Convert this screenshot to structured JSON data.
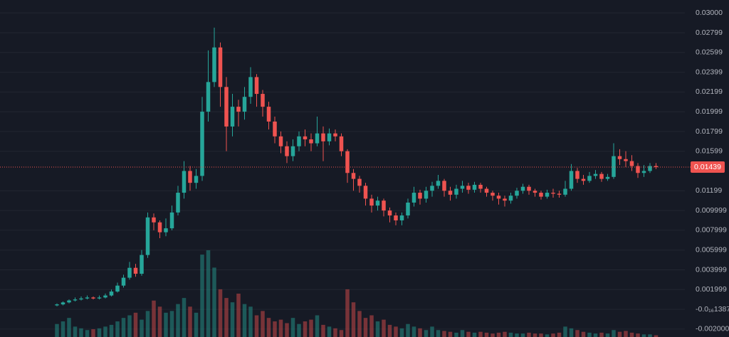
{
  "chart_data": {
    "type": "candlestick",
    "up_color": "#26a69a",
    "down_color": "#ef5350",
    "grid": true,
    "ylim": [
      -0.0028,
      0.0313
    ],
    "yticks": [
      {
        "value": 0.03,
        "label": "0.03000"
      },
      {
        "value": 0.02799,
        "label": "0.02799"
      },
      {
        "value": 0.02599,
        "label": "0.02599"
      },
      {
        "value": 0.02399,
        "label": "0.02399"
      },
      {
        "value": 0.02199,
        "label": "0.02199"
      },
      {
        "value": 0.01999,
        "label": "0.01999"
      },
      {
        "value": 0.01799,
        "label": "0.01799"
      },
      {
        "value": 0.01599,
        "label": "0.01599"
      },
      {
        "value": 0.01199,
        "label": "0.01199"
      },
      {
        "value": 0.009999,
        "label": "0.009999"
      },
      {
        "value": 0.007999,
        "label": "0.007999"
      },
      {
        "value": 0.005999,
        "label": "0.005999"
      },
      {
        "value": 0.003999,
        "label": "0.003999"
      },
      {
        "value": 0.001999,
        "label": "0.001999"
      },
      {
        "value": 0,
        "label": "-0.0₁₆1387"
      },
      {
        "value": -0.002,
        "label": "-0.002000"
      }
    ],
    "last_price": {
      "value": 0.01439,
      "label": "0.01439"
    },
    "open": [
      0.0004,
      0.0005,
      0.0007,
      0.0009,
      0.001,
      0.0011,
      0.0012,
      0.0011,
      0.0012,
      0.0014,
      0.0018,
      0.0024,
      0.0032,
      0.0042,
      0.0036,
      0.0055,
      0.0093,
      0.0088,
      0.0078,
      0.0082,
      0.0098,
      0.0118,
      0.014,
      0.0128,
      0.0135,
      0.02,
      0.023,
      0.0265,
      0.0225,
      0.0185,
      0.0205,
      0.02,
      0.0215,
      0.0235,
      0.0218,
      0.0205,
      0.019,
      0.0175,
      0.0165,
      0.0155,
      0.0165,
      0.0175,
      0.0172,
      0.0168,
      0.0178,
      0.017,
      0.0178,
      0.0175,
      0.016,
      0.0138,
      0.0132,
      0.0125,
      0.0112,
      0.0105,
      0.011,
      0.01,
      0.0095,
      0.009,
      0.0095,
      0.0108,
      0.0118,
      0.0112,
      0.012,
      0.0125,
      0.013,
      0.012,
      0.0116,
      0.0122,
      0.0125,
      0.0121,
      0.0126,
      0.0122,
      0.0118,
      0.0115,
      0.0112,
      0.011,
      0.0115,
      0.012,
      0.0124,
      0.012,
      0.0118,
      0.0114,
      0.0118,
      0.0117,
      0.0116,
      0.0122,
      0.014,
      0.0132,
      0.013,
      0.0135,
      0.0137,
      0.0132,
      0.0134,
      0.0155,
      0.0152,
      0.015,
      0.0145,
      0.0138,
      0.014,
      0.0145
    ],
    "high": [
      0.0006,
      0.0008,
      0.001,
      0.0012,
      0.0013,
      0.0014,
      0.0013,
      0.0014,
      0.0016,
      0.002,
      0.0027,
      0.0035,
      0.0048,
      0.0046,
      0.006,
      0.0098,
      0.0097,
      0.009,
      0.0092,
      0.0105,
      0.0125,
      0.015,
      0.0145,
      0.0142,
      0.0215,
      0.0262,
      0.0285,
      0.027,
      0.0235,
      0.0218,
      0.0212,
      0.0225,
      0.0245,
      0.0238,
      0.0222,
      0.021,
      0.0195,
      0.018,
      0.017,
      0.0172,
      0.018,
      0.0182,
      0.0178,
      0.0195,
      0.0185,
      0.0183,
      0.0182,
      0.0178,
      0.0162,
      0.0142,
      0.0135,
      0.0128,
      0.0116,
      0.0114,
      0.0112,
      0.0103,
      0.0098,
      0.0098,
      0.0112,
      0.0124,
      0.0121,
      0.0124,
      0.0129,
      0.0136,
      0.0132,
      0.0124,
      0.0126,
      0.013,
      0.0128,
      0.0129,
      0.0128,
      0.0124,
      0.012,
      0.0118,
      0.0115,
      0.0118,
      0.0123,
      0.0127,
      0.0126,
      0.0122,
      0.012,
      0.0121,
      0.0122,
      0.012,
      0.013,
      0.0147,
      0.0143,
      0.0136,
      0.0139,
      0.0141,
      0.0139,
      0.0137,
      0.0168,
      0.0162,
      0.016,
      0.0156,
      0.0148,
      0.0146,
      0.0148,
      0.0148
    ],
    "low": [
      0.0003,
      0.0004,
      0.0006,
      0.0008,
      0.0009,
      0.001,
      0.001,
      0.001,
      0.0011,
      0.0013,
      0.0017,
      0.0022,
      0.003,
      0.0033,
      0.0034,
      0.0052,
      0.008,
      0.0072,
      0.0074,
      0.008,
      0.0095,
      0.0112,
      0.012,
      0.0122,
      0.013,
      0.019,
      0.0225,
      0.0205,
      0.016,
      0.0175,
      0.0185,
      0.0192,
      0.0208,
      0.0205,
      0.0195,
      0.0182,
      0.0168,
      0.0158,
      0.0148,
      0.015,
      0.016,
      0.0165,
      0.016,
      0.0165,
      0.015,
      0.0166,
      0.017,
      0.0155,
      0.0128,
      0.012,
      0.0118,
      0.0105,
      0.0098,
      0.01,
      0.0094,
      0.0088,
      0.0085,
      0.0085,
      0.0092,
      0.0104,
      0.0106,
      0.0108,
      0.0114,
      0.0122,
      0.0114,
      0.011,
      0.0112,
      0.0118,
      0.0117,
      0.0118,
      0.0118,
      0.0114,
      0.011,
      0.0106,
      0.0104,
      0.0107,
      0.0112,
      0.0117,
      0.0116,
      0.0114,
      0.0111,
      0.0112,
      0.0113,
      0.0113,
      0.0114,
      0.012,
      0.0128,
      0.0126,
      0.0128,
      0.0132,
      0.0129,
      0.013,
      0.0132,
      0.0146,
      0.0144,
      0.014,
      0.0133,
      0.0134,
      0.0138,
      0.0142
    ],
    "close": [
      0.0005,
      0.0007,
      0.0009,
      0.001,
      0.0011,
      0.0012,
      0.0011,
      0.0012,
      0.0014,
      0.0018,
      0.0024,
      0.0032,
      0.0042,
      0.0036,
      0.0055,
      0.0093,
      0.0088,
      0.0078,
      0.0082,
      0.0098,
      0.0118,
      0.014,
      0.0128,
      0.0135,
      0.02,
      0.023,
      0.0265,
      0.0225,
      0.0185,
      0.0205,
      0.02,
      0.0215,
      0.0235,
      0.0218,
      0.0205,
      0.019,
      0.0175,
      0.0165,
      0.0155,
      0.0165,
      0.0175,
      0.0172,
      0.0168,
      0.0178,
      0.017,
      0.0178,
      0.0175,
      0.016,
      0.0138,
      0.0132,
      0.0125,
      0.0112,
      0.0105,
      0.011,
      0.01,
      0.0095,
      0.009,
      0.0095,
      0.0108,
      0.0118,
      0.0112,
      0.012,
      0.0125,
      0.013,
      0.012,
      0.0116,
      0.0122,
      0.0125,
      0.0121,
      0.0126,
      0.0122,
      0.0118,
      0.0115,
      0.0112,
      0.011,
      0.0115,
      0.012,
      0.0124,
      0.012,
      0.0118,
      0.0114,
      0.0118,
      0.0117,
      0.0116,
      0.0122,
      0.014,
      0.0132,
      0.013,
      0.0135,
      0.0137,
      0.0132,
      0.0134,
      0.0155,
      0.0152,
      0.015,
      0.0145,
      0.0138,
      0.014,
      0.0145,
      0.01439
    ],
    "volume": [
      15,
      18,
      22,
      12,
      10,
      8,
      9,
      10,
      12,
      14,
      18,
      22,
      25,
      28,
      20,
      30,
      42,
      35,
      28,
      30,
      38,
      45,
      35,
      28,
      95,
      100,
      80,
      55,
      45,
      40,
      50,
      38,
      35,
      25,
      30,
      22,
      18,
      20,
      16,
      22,
      15,
      18,
      20,
      25,
      14,
      12,
      10,
      8,
      55,
      40,
      30,
      22,
      25,
      18,
      20,
      14,
      12,
      10,
      15,
      12,
      10,
      8,
      12,
      8,
      7,
      6,
      5,
      8,
      6,
      5,
      6,
      5,
      4,
      5,
      6,
      5,
      4,
      4,
      5,
      4,
      4,
      3,
      4,
      5,
      12,
      10,
      8,
      6,
      5,
      4,
      5,
      4,
      8,
      6,
      7,
      5,
      4,
      3,
      3,
      2
    ]
  }
}
